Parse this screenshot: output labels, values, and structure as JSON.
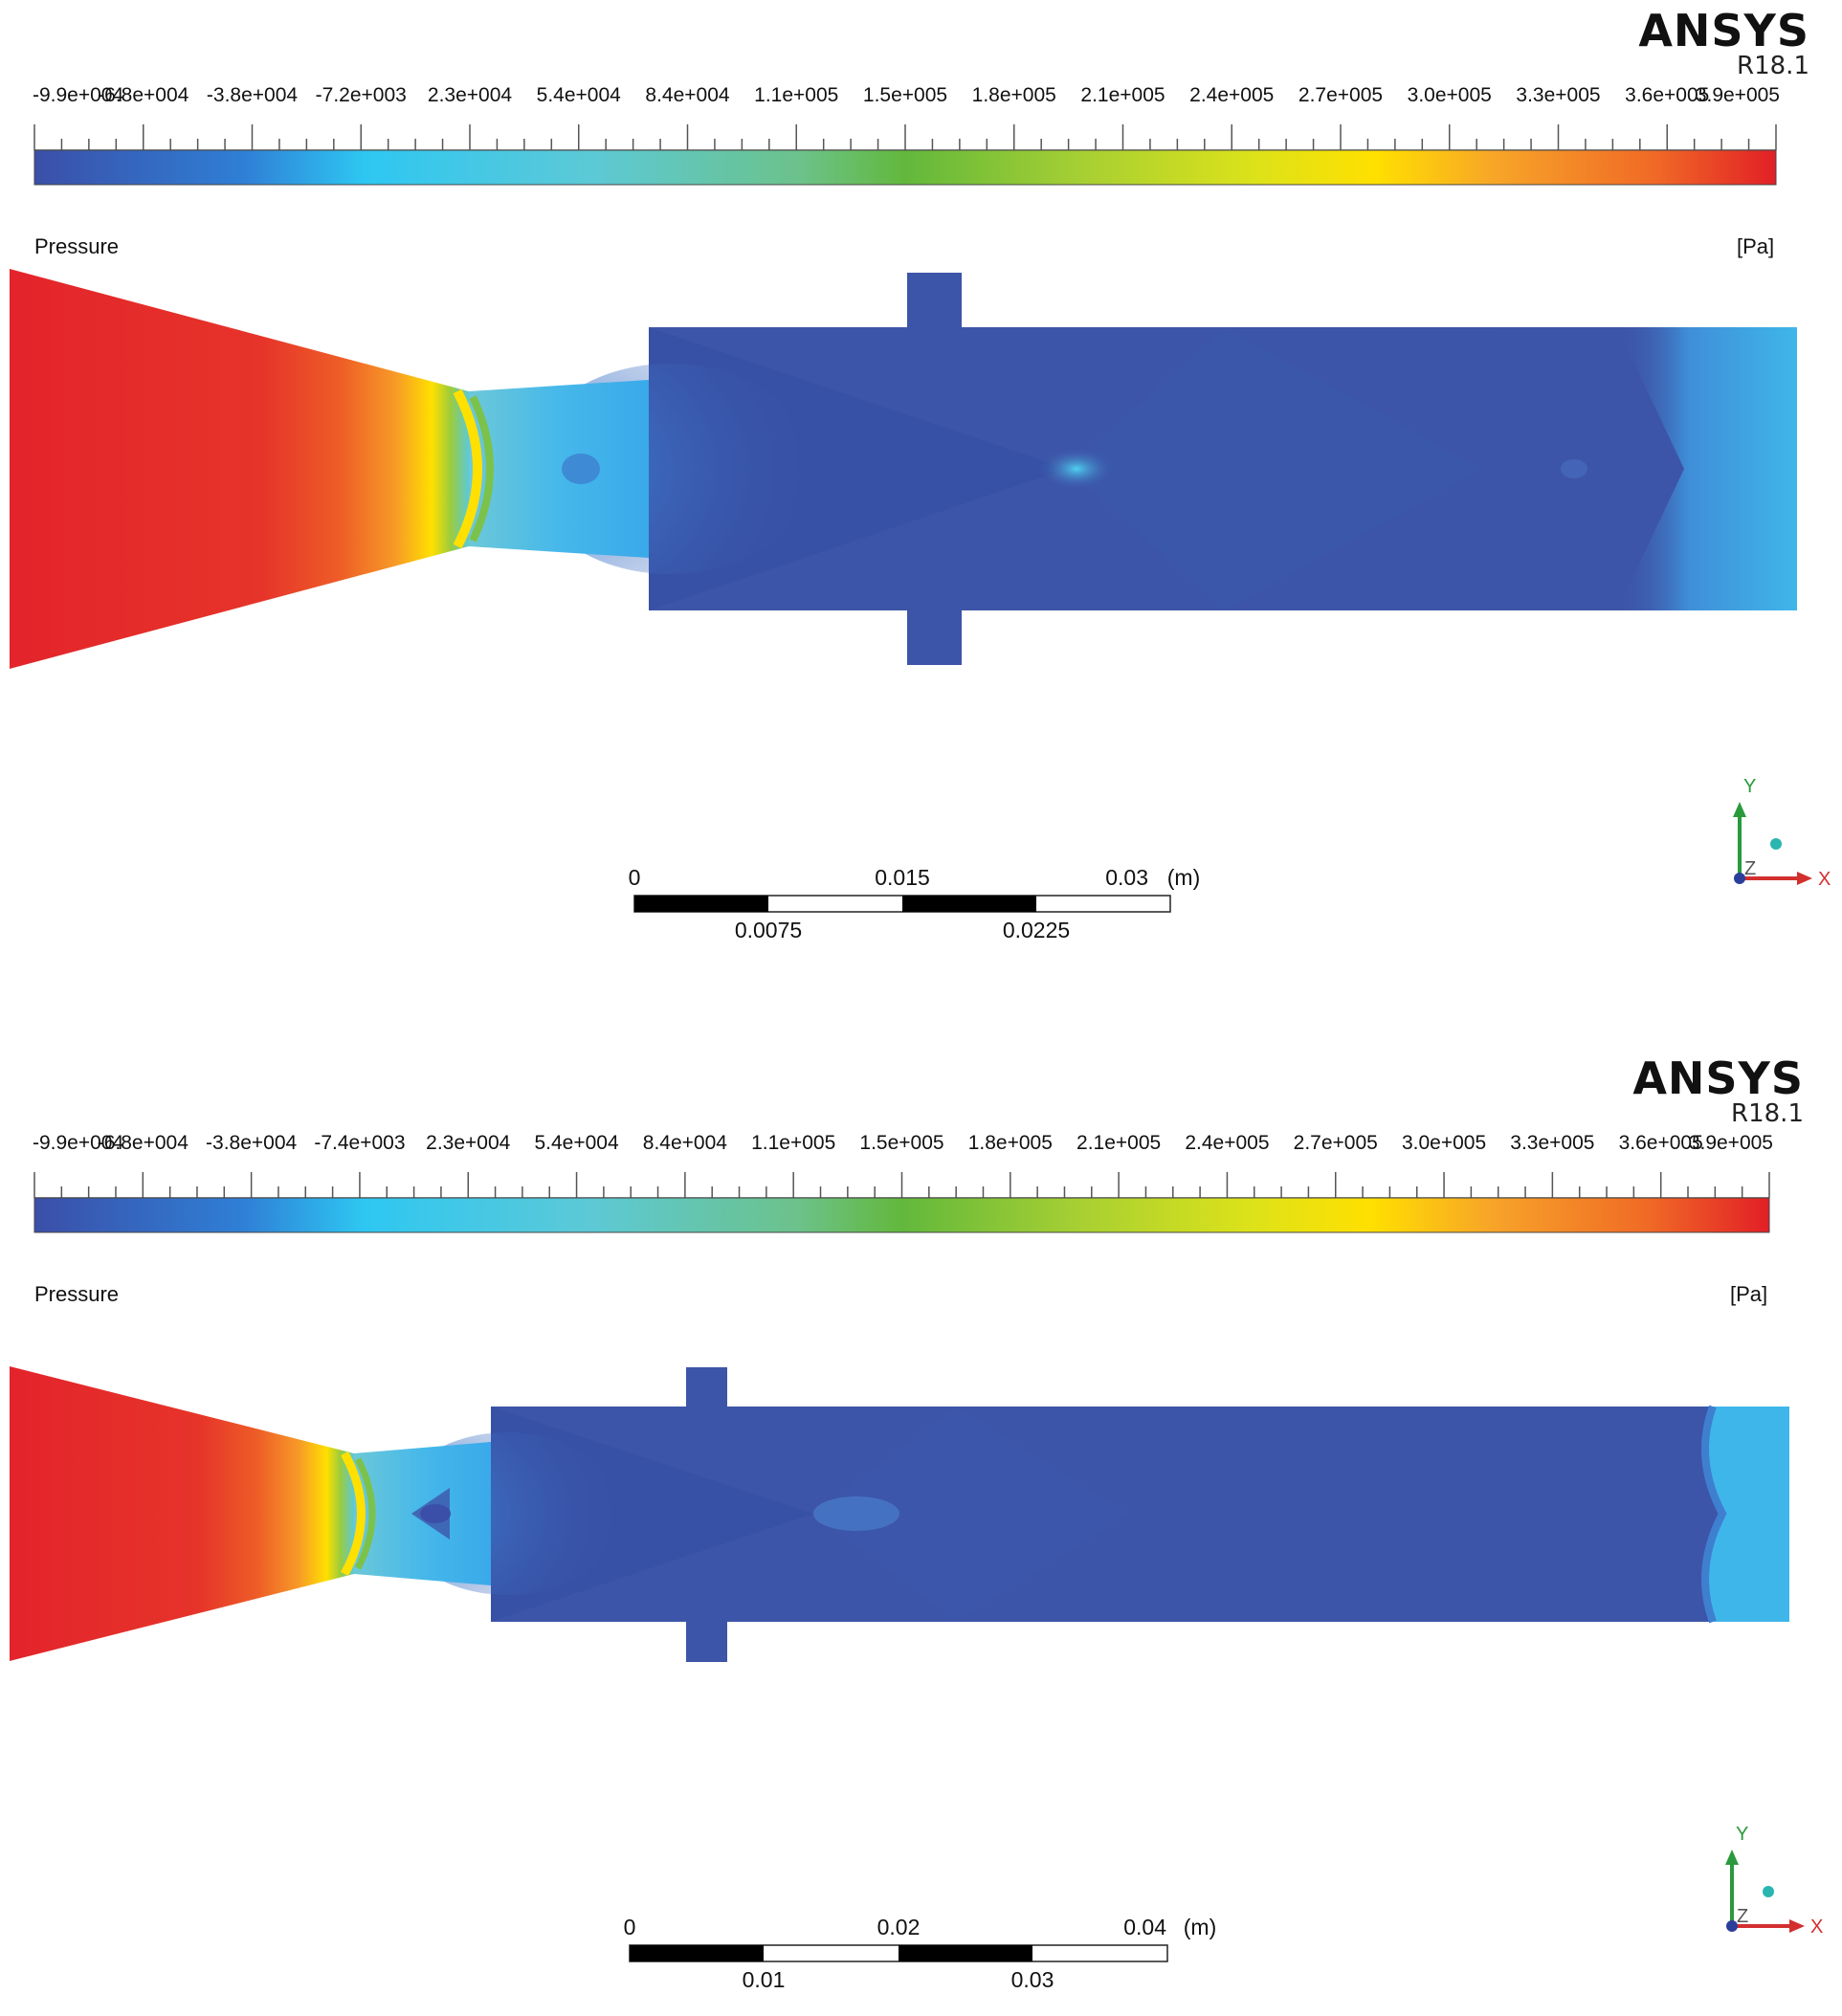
{
  "panels": [
    {
      "brand": {
        "name": "ANSYS",
        "version": "R18.1"
      },
      "legend": {
        "ticks": [
          "-9.9e+004",
          "-6.8e+004",
          "-3.8e+004",
          "-7.2e+003",
          "2.3e+004",
          "5.4e+004",
          "8.4e+004",
          "1.1e+005",
          "1.5e+005",
          "1.8e+005",
          "2.1e+005",
          "2.4e+005",
          "2.7e+005",
          "3.0e+005",
          "3.3e+005",
          "3.6e+005",
          "3.9e+005"
        ],
        "variable": "Pressure",
        "unit": "[Pa]"
      },
      "scale_bar": {
        "top_labels": [
          "0",
          "0.015",
          "0.03"
        ],
        "bottom_labels": [
          "0.0075",
          "0.0225"
        ],
        "unit": "(m)"
      },
      "axes": {
        "x": "X",
        "y": "Y",
        "z": "Z"
      }
    },
    {
      "brand": {
        "name": "ANSYS",
        "version": "R18.1"
      },
      "legend": {
        "ticks": [
          "-9.9e+004",
          "-6.8e+004",
          "-3.8e+004",
          "-7.4e+003",
          "2.3e+004",
          "5.4e+004",
          "8.4e+004",
          "1.1e+005",
          "1.5e+005",
          "1.8e+005",
          "2.1e+005",
          "2.4e+005",
          "2.7e+005",
          "3.0e+005",
          "3.3e+005",
          "3.6e+005",
          "3.9e+005"
        ],
        "variable": "Pressure",
        "unit": "[Pa]"
      },
      "scale_bar": {
        "top_labels": [
          "0",
          "0.02",
          "0.04"
        ],
        "bottom_labels": [
          "0.01",
          "0.03"
        ],
        "unit": "(m)"
      },
      "axes": {
        "x": "X",
        "y": "Y",
        "z": "Z"
      }
    }
  ],
  "colormap": [
    "#3b4fa8",
    "#2f7fd6",
    "#2ec7f2",
    "#5cc9d6",
    "#6cc28a",
    "#62b83c",
    "#a6cf33",
    "#dce21a",
    "#ffe000",
    "#f7a428",
    "#f06a26",
    "#e21f26"
  ],
  "colors": {
    "field_blue": "#3d55a8",
    "field_red": "#e3242b",
    "accent_y": "#2a9a3c",
    "accent_x": "#d32f2f"
  }
}
